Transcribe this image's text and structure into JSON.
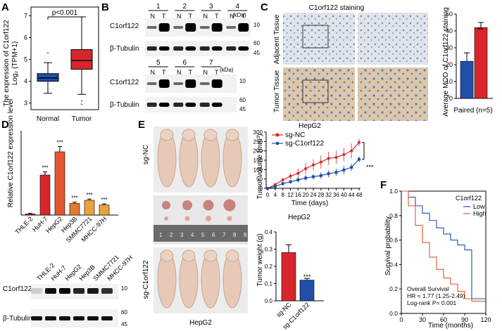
{
  "panels": {
    "A": {
      "letter": "A"
    },
    "B": {
      "letter": "B"
    },
    "C": {
      "letter": "C"
    },
    "D": {
      "letter": "D"
    },
    "E": {
      "letter": "E"
    },
    "F": {
      "letter": "F"
    }
  },
  "panelA": {
    "ylabel_line1": "The expression of C1orf122",
    "ylabel_line2": "Log₂ (TPM+1)",
    "pvalue": "p<0.001",
    "yticks": [
      "3",
      "4",
      "5",
      "6",
      "7"
    ]
  },
  "panelB": {
    "kda": "(kDa)",
    "top": {
      "lanes": [
        "1",
        "2",
        "3",
        "4"
      ]
    },
    "bottom": {
      "lanes": [
        "5",
        "6",
        "7"
      ]
    },
    "nt": [
      "N",
      "T"
    ],
    "c1orf122": "C1orf122",
    "tubulin": "β-Tubulin",
    "marker10": "10",
    "marker60": "60",
    "marker45": "45"
  },
  "panelC": {
    "title": "C1orf122 staining",
    "adjacent": "Adjacent Tissue",
    "tumor": "Tumor Tissue",
    "sig": "**",
    "ylabel": "Average MOD of C1orf122 staining",
    "xlabel": "Paired (n=5)",
    "yticks": [
      "0",
      "10",
      "20",
      "30",
      "40",
      "50"
    ]
  },
  "panelD": {
    "ylabel": "Relative C1orf122 expression level",
    "sig": "***",
    "blot_c1orf122": "C1orf122",
    "blot_tubulin": "β-Tubulin",
    "m10": "10",
    "m60": "60",
    "m45": "45"
  },
  "panelE": {
    "sg_nc": "sg-NC",
    "sg_c1orf122": "sg-C1orf122",
    "cell": "HepG2",
    "vol_title": "HepG2",
    "vol_ylabel": "Tumor volume  (mm³)",
    "vol_xlabel": "Time (days)",
    "vol_sig": "***",
    "wt_title": "HepG2",
    "wt_ylabel": "Tumor weight (g)",
    "wt_sig": "***",
    "ruler": [
      "1",
      "2",
      "3",
      "4",
      "5",
      "6",
      "7",
      "8",
      "9"
    ]
  },
  "panelF": {
    "ylabel": "Survival probability",
    "xlabel": "Time (months)",
    "legend_title": "C1orf122",
    "low": "Low",
    "high": "High",
    "stat1": "Overall Survival",
    "stat2": "HR = 1.77 (1.25-2.49)",
    "stat3": "Log-rank P= 0.001"
  },
  "colors": {
    "blue": "#1f4fa8",
    "red": "#d7262b",
    "orange": "#e4572e",
    "amber": "#e8a33a"
  },
  "chart_data": [
    {
      "id": "A",
      "type": "box",
      "title": "",
      "categories": [
        "Normal",
        "Tumor"
      ],
      "ylabel": "The expression of C1orf122 Log2 (TPM+1)",
      "ylim": [
        2.7,
        7.4
      ],
      "boxes": [
        {
          "name": "Normal",
          "min": 3.45,
          "q1": 4.0,
          "median": 4.15,
          "q3": 4.35,
          "max": 4.85,
          "outliers": [
            5.3
          ]
        },
        {
          "name": "Tumor",
          "min": 3.4,
          "q1": 4.55,
          "median": 4.95,
          "q3": 5.45,
          "max": 6.95,
          "outliers": [
            3.1,
            2.95
          ]
        }
      ]
    },
    {
      "id": "C",
      "type": "bar",
      "categories": [
        "Adjacent",
        "Tumor"
      ],
      "values": [
        22,
        42
      ],
      "errors": [
        5,
        3
      ],
      "ylim": [
        0,
        50
      ],
      "xlabel": "Paired (n=5)",
      "ylabel": "Average MOD of C1orf122 staining"
    },
    {
      "id": "D",
      "type": "bar",
      "categories": [
        "THLE-2",
        "HuH-7",
        "HepG2",
        "Hep3B",
        "SMMC7721",
        "MHCC-97H"
      ],
      "values": [
        0.5,
        19,
        30,
        5.5,
        7,
        4.8
      ],
      "errors": [
        0.3,
        1.5,
        2.5,
        0.6,
        0.6,
        0.5
      ],
      "labels": [
        "",
        "***",
        "***",
        "***",
        "***",
        "***"
      ],
      "ylim": [
        0,
        40
      ],
      "ylabel": "Relative C1orf122 expression level"
    },
    {
      "id": "E-volume",
      "type": "line",
      "x": [
        0,
        4,
        8,
        12,
        16,
        20,
        24,
        28,
        32,
        36,
        40,
        44,
        48
      ],
      "xticks": [
        "0",
        "4",
        "8",
        "12",
        "16",
        "20",
        "24",
        "28",
        "32",
        "36",
        "40",
        "44",
        "48"
      ],
      "series": [
        {
          "name": "sg-NC",
          "values": [
            0,
            20,
            45,
            65,
            80,
            105,
            125,
            140,
            160,
            165,
            180,
            200,
            245
          ],
          "errors": [
            0,
            5,
            10,
            15,
            25,
            30,
            30,
            35,
            35,
            35,
            35,
            40,
            20
          ]
        },
        {
          "name": "sg-C1orf122",
          "values": [
            0,
            10,
            25,
            35,
            45,
            55,
            62,
            68,
            78,
            85,
            98,
            112,
            155
          ],
          "errors": [
            0,
            4,
            8,
            10,
            12,
            15,
            15,
            18,
            20,
            20,
            22,
            20,
            15
          ]
        }
      ],
      "ylim": [
        0,
        300
      ],
      "yticks": [
        "0",
        "50",
        "100",
        "150",
        "200",
        "250",
        "300"
      ],
      "xlabel": "Time (days)",
      "ylabel": "Tumor volume (mm3)",
      "title": "HepG2"
    },
    {
      "id": "E-weight",
      "type": "bar",
      "categories": [
        "sg-NC",
        "sg-C1orf122"
      ],
      "values": [
        0.28,
        0.12
      ],
      "errors": [
        0.045,
        0.01
      ],
      "ylim": [
        0,
        0.4
      ],
      "yticks": [
        "0.0",
        "0.1",
        "0.2",
        "0.3",
        "0.4"
      ],
      "ylabel": "Tumor weight (g)",
      "title": "HepG2"
    },
    {
      "id": "F",
      "type": "line",
      "subtype": "kaplan-meier",
      "x": [
        0,
        10,
        20,
        30,
        40,
        50,
        60,
        70,
        80,
        90,
        100,
        110,
        120
      ],
      "xticks": [
        "0",
        "30",
        "60",
        "90",
        "120"
      ],
      "yticks": [
        "0.0",
        "0.2",
        "0.4",
        "0.6",
        "0.8",
        "1.0"
      ],
      "series": [
        {
          "name": "Low",
          "values": [
            1.0,
            0.95,
            0.88,
            0.82,
            0.76,
            0.7,
            0.65,
            0.6,
            0.56,
            0.52,
            0.12,
            0.12,
            0.12
          ]
        },
        {
          "name": "High",
          "values": [
            1.0,
            0.88,
            0.72,
            0.58,
            0.46,
            0.36,
            0.29,
            0.24,
            0.18,
            0.12,
            0.1,
            0.1,
            0.1
          ]
        }
      ],
      "ylim": [
        0,
        1
      ],
      "xlabel": "Time (months)",
      "ylabel": "Survival probability"
    }
  ]
}
